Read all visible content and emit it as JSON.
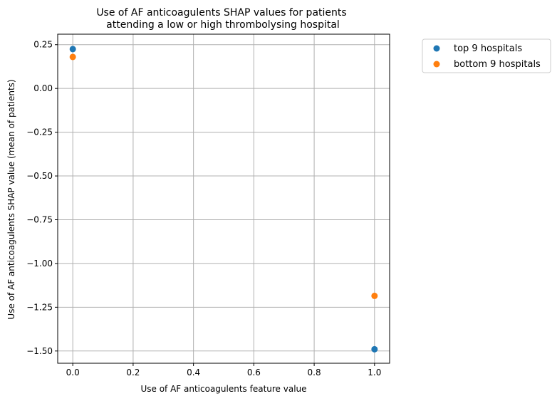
{
  "chart_data": {
    "type": "scatter",
    "title_line1": "Use of AF anticoagulents SHAP values for patients",
    "title_line2": "attending a low or high thrombolysing hospital",
    "xlabel": "Use of AF anticoagulents feature value",
    "ylabel": "Use of AF anticoagulents SHAP value (mean of patients)",
    "xlim": [
      -0.05,
      1.05
    ],
    "ylim": [
      -1.57,
      0.31
    ],
    "xticks": [
      0.0,
      0.2,
      0.4,
      0.6,
      0.8,
      1.0
    ],
    "xtick_labels": [
      "0.0",
      "0.2",
      "0.4",
      "0.6",
      "0.8",
      "1.0"
    ],
    "yticks": [
      0.25,
      0.0,
      -0.25,
      -0.5,
      -0.75,
      -1.0,
      -1.25,
      -1.5
    ],
    "ytick_labels": [
      "0.25",
      "0.00",
      "−0.25",
      "−0.50",
      "−0.75",
      "−1.00",
      "−1.25",
      "−1.50"
    ],
    "grid": true,
    "legend_position": "outside-top-right",
    "series": [
      {
        "name": "top 9 hospitals",
        "color": "#1f77b4",
        "points": [
          {
            "x": 0.0,
            "y": 0.225
          },
          {
            "x": 1.0,
            "y": -1.49
          }
        ]
      },
      {
        "name": "bottom 9 hospitals",
        "color": "#ff7f0e",
        "points": [
          {
            "x": 0.0,
            "y": 0.18
          },
          {
            "x": 1.0,
            "y": -1.185
          }
        ]
      }
    ]
  }
}
